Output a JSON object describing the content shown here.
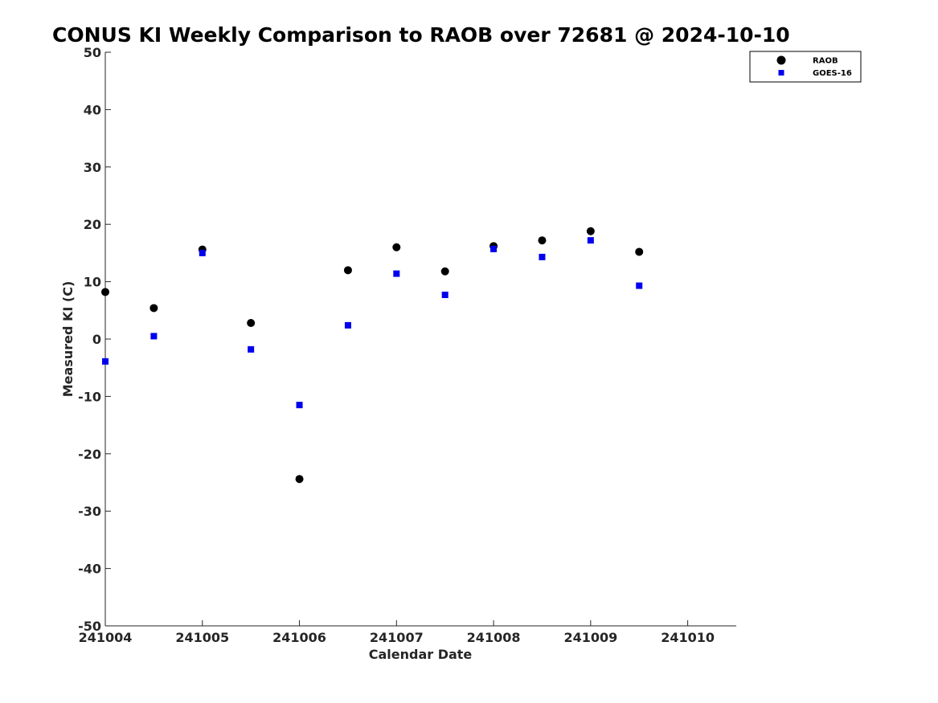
{
  "chart_data": {
    "type": "scatter",
    "title": "CONUS KI Weekly Comparison to RAOB over 72681 @ 2024-10-10",
    "xlabel": "Calendar Date",
    "ylabel": "Measured KI (C)",
    "xlim": [
      "241004",
      "241010 12:00"
    ],
    "ylim": [
      -50,
      50
    ],
    "x_ticks": [
      "241004",
      "241005",
      "241006",
      "241007",
      "241008",
      "241009",
      "241010"
    ],
    "y_ticks": [
      50,
      40,
      30,
      20,
      10,
      0,
      -10,
      -20,
      -30,
      -40,
      -50
    ],
    "grid": false,
    "legend_position": "top-right",
    "series": [
      {
        "name": "RAOB",
        "marker": "circle",
        "color": "#000000",
        "x": [
          "241004 00:00",
          "241004 12:00",
          "241005 00:00",
          "241005 12:00",
          "241006 00:00",
          "241006 12:00",
          "241007 00:00",
          "241007 12:00",
          "241008 00:00",
          "241008 12:00",
          "241009 00:00",
          "241009 12:00"
        ],
        "y": [
          8.2,
          5.4,
          15.6,
          2.8,
          -24.4,
          12.0,
          16.0,
          11.8,
          16.2,
          17.2,
          18.8,
          15.2
        ]
      },
      {
        "name": "GOES-16",
        "marker": "square",
        "color": "#0000ee",
        "x": [
          "241004 00:00",
          "241004 12:00",
          "241005 00:00",
          "241005 12:00",
          "241006 00:00",
          "241006 12:00",
          "241007 00:00",
          "241007 12:00",
          "241008 00:00",
          "241008 12:00",
          "241009 00:00",
          "241009 12:00"
        ],
        "y": [
          -3.9,
          0.5,
          15.0,
          -1.8,
          -11.5,
          2.4,
          11.4,
          7.7,
          15.7,
          14.3,
          17.2,
          9.3
        ]
      }
    ]
  }
}
